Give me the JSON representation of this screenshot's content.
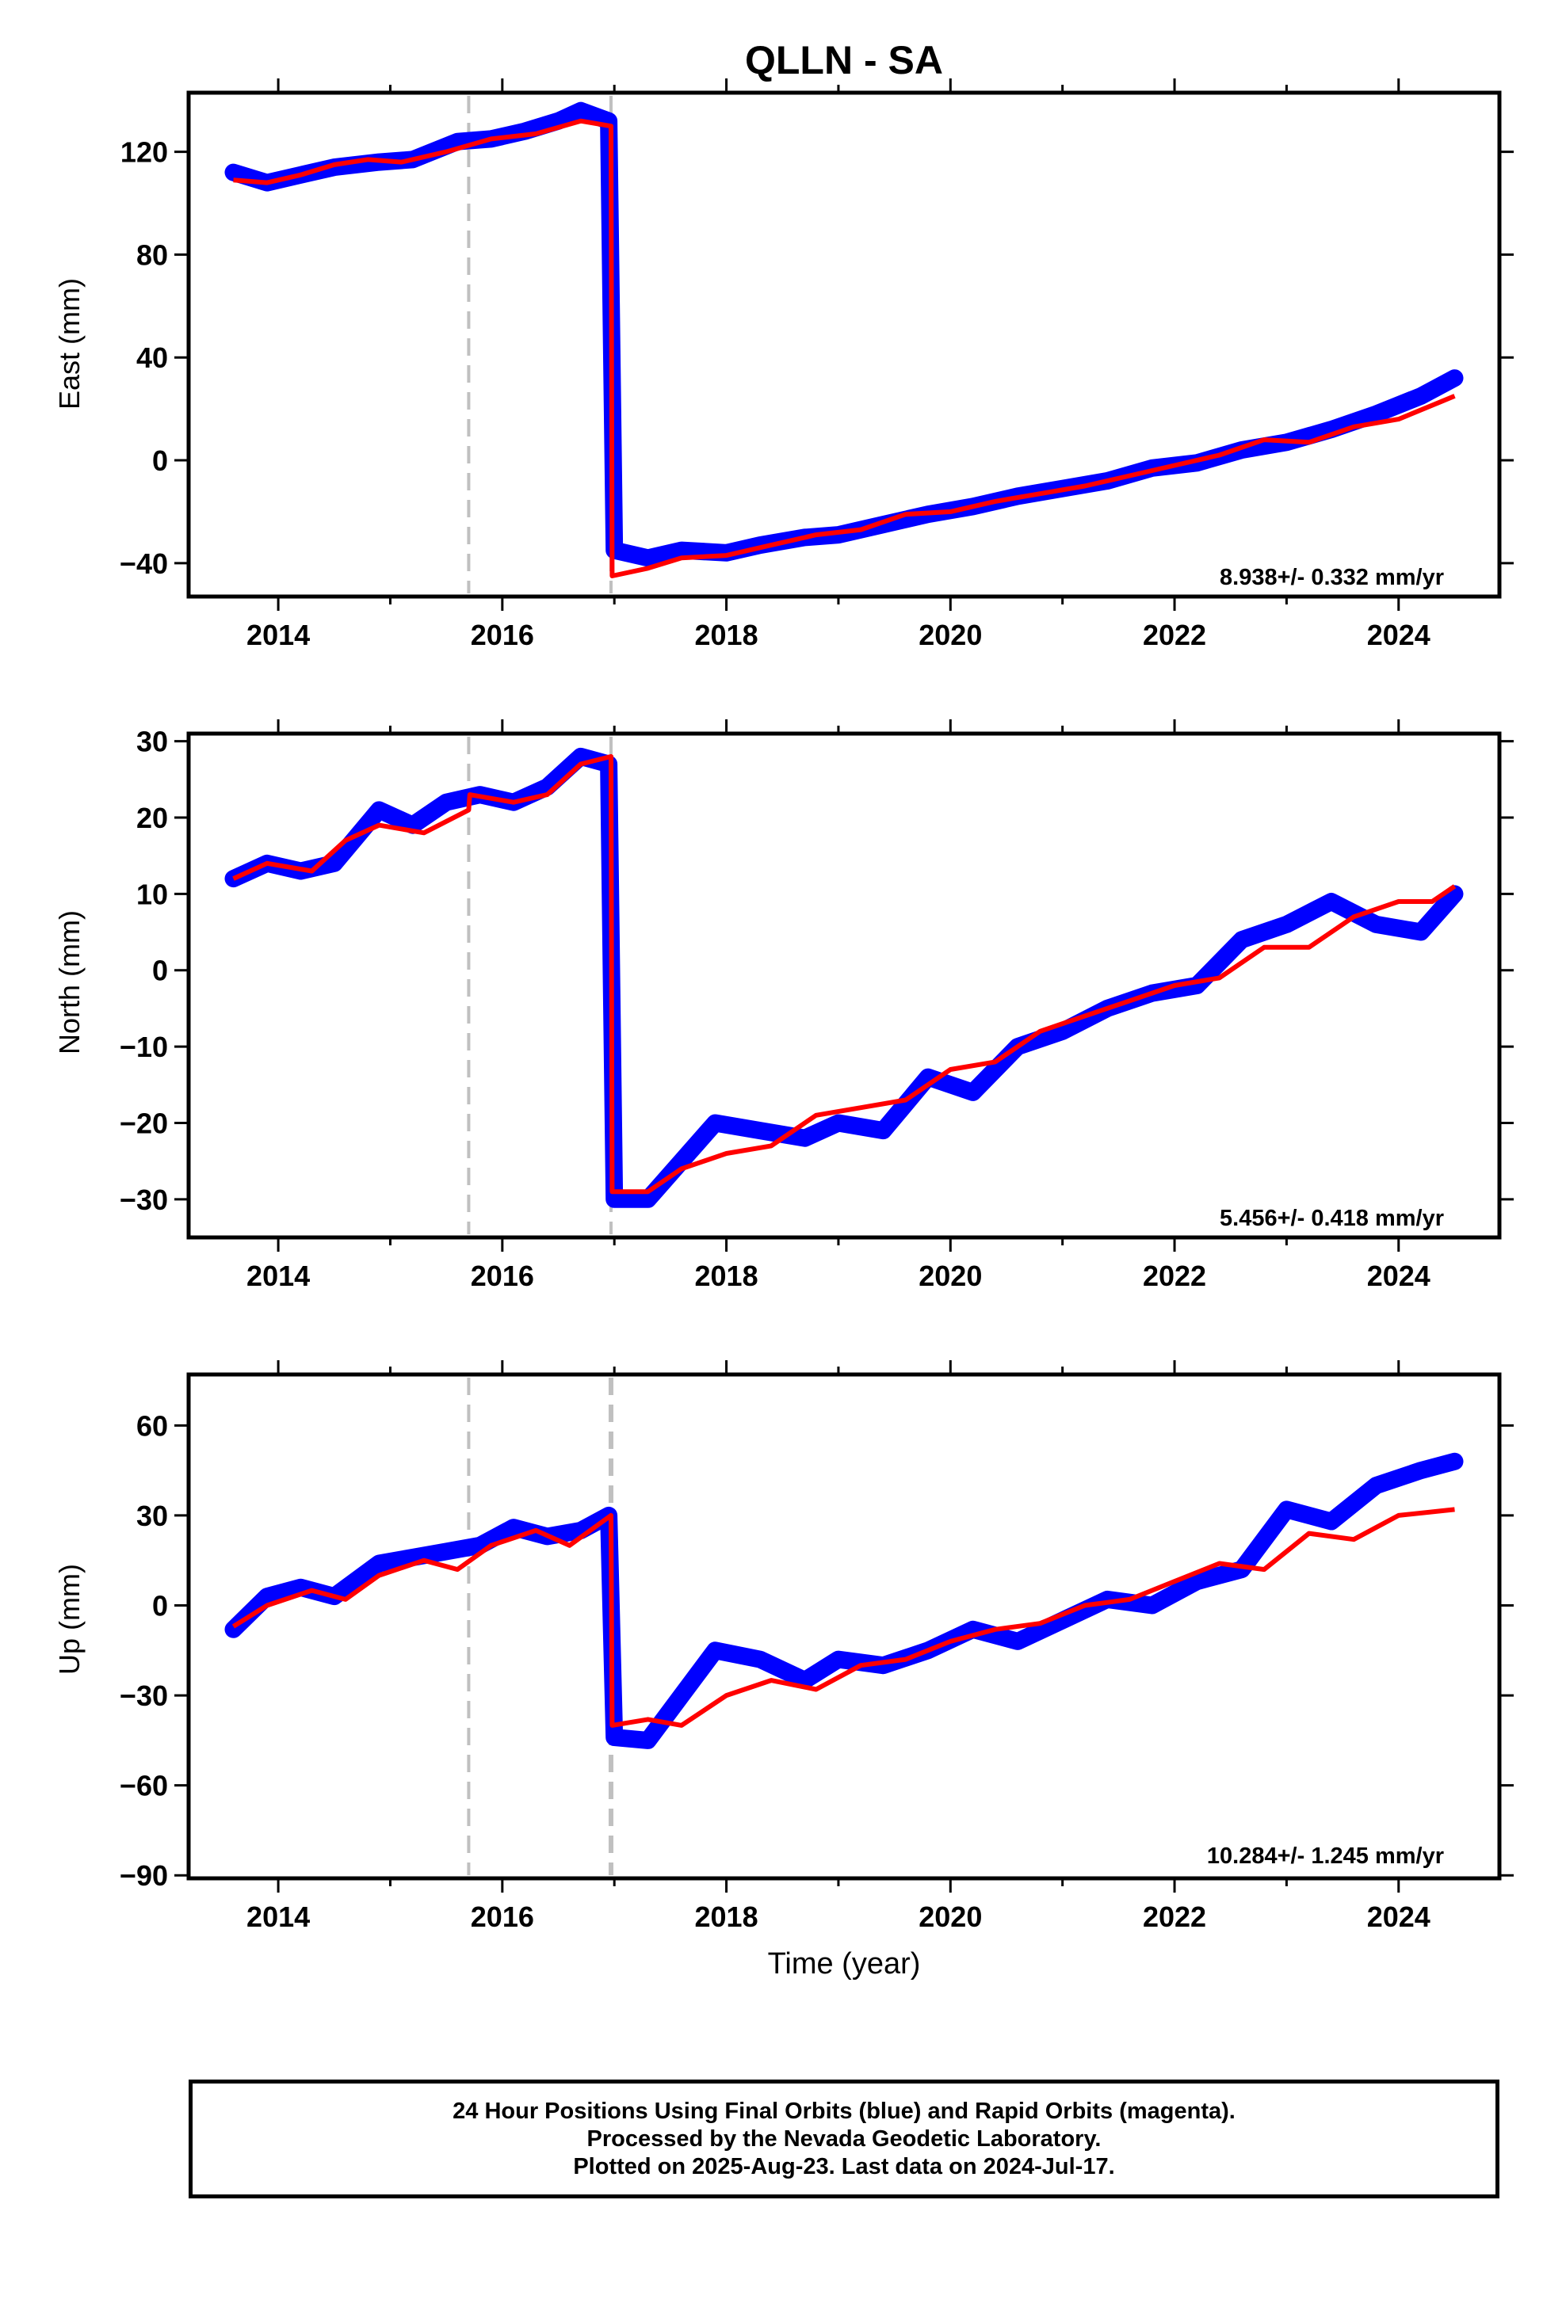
{
  "title": "QLLN - SA",
  "xlabel": "Time (year)",
  "colors": {
    "points": "#0000ff",
    "model": "#ff0000",
    "event_line": "#c0c0c0",
    "frame": "#000000"
  },
  "chart_data": [
    {
      "type": "scatter",
      "ylabel": "East (mm)",
      "xlim": [
        2013.2,
        2024.9
      ],
      "ylim": [
        -53,
        143
      ],
      "xticks": [
        2014,
        2016,
        2018,
        2020,
        2022,
        2024
      ],
      "xtick_labels": [
        "2014",
        "2016",
        "2018",
        "2020",
        "2022",
        "2024"
      ],
      "yticks": [
        -40,
        0,
        40,
        80,
        120
      ],
      "ytick_labels": [
        "−40",
        "0",
        "40",
        "80",
        "120"
      ],
      "rate_label": "8.938+/- 0.332 mm/yr",
      "event_lines": [
        2015.7,
        2016.97
      ],
      "series": [
        {
          "label": "positions",
          "points": [
            [
              2013.6,
              112
            ],
            [
              2013.9,
              108
            ],
            [
              2014.2,
              111
            ],
            [
              2014.5,
              114
            ],
            [
              2014.9,
              116
            ],
            [
              2015.2,
              117
            ],
            [
              2015.6,
              124
            ],
            [
              2015.9,
              125
            ],
            [
              2016.2,
              128
            ],
            [
              2016.5,
              132
            ],
            [
              2016.7,
              136
            ],
            [
              2016.95,
              132
            ],
            [
              2017.0,
              -35
            ],
            [
              2017.3,
              -38
            ],
            [
              2017.6,
              -35
            ],
            [
              2018.0,
              -36
            ],
            [
              2018.3,
              -33
            ],
            [
              2018.7,
              -30
            ],
            [
              2019.0,
              -29
            ],
            [
              2019.4,
              -25
            ],
            [
              2019.8,
              -21
            ],
            [
              2020.2,
              -18
            ],
            [
              2020.6,
              -14
            ],
            [
              2021.0,
              -11
            ],
            [
              2021.4,
              -8
            ],
            [
              2021.8,
              -3
            ],
            [
              2022.2,
              -1
            ],
            [
              2022.6,
              4
            ],
            [
              2023.0,
              7
            ],
            [
              2023.4,
              12
            ],
            [
              2023.8,
              18
            ],
            [
              2024.2,
              25
            ],
            [
              2024.5,
              32
            ]
          ]
        },
        {
          "label": "model",
          "points": [
            [
              2013.6,
              109
            ],
            [
              2013.9,
              108
            ],
            [
              2014.2,
              111
            ],
            [
              2014.5,
              115
            ],
            [
              2014.8,
              117
            ],
            [
              2015.1,
              116
            ],
            [
              2015.5,
              120
            ],
            [
              2015.9,
              125
            ],
            [
              2016.3,
              127
            ],
            [
              2016.7,
              132
            ],
            [
              2016.97,
              130
            ],
            [
              2016.98,
              -45
            ],
            [
              2017.3,
              -42
            ],
            [
              2017.6,
              -38
            ],
            [
              2018.0,
              -37
            ],
            [
              2018.4,
              -33
            ],
            [
              2018.8,
              -29
            ],
            [
              2019.2,
              -27
            ],
            [
              2019.6,
              -21
            ],
            [
              2020.0,
              -20
            ],
            [
              2020.4,
              -16
            ],
            [
              2020.8,
              -13
            ],
            [
              2021.2,
              -10
            ],
            [
              2021.6,
              -6
            ],
            [
              2022.0,
              -2
            ],
            [
              2022.4,
              2
            ],
            [
              2022.8,
              8
            ],
            [
              2023.2,
              7
            ],
            [
              2023.6,
              13
            ],
            [
              2024.0,
              16
            ],
            [
              2024.5,
              25
            ]
          ]
        }
      ]
    },
    {
      "type": "scatter",
      "ylabel": "North (mm)",
      "xlim": [
        2013.2,
        2024.9
      ],
      "ylim": [
        -35,
        31
      ],
      "xticks": [
        2014,
        2016,
        2018,
        2020,
        2022,
        2024
      ],
      "xtick_labels": [
        "2014",
        "2016",
        "2018",
        "2020",
        "2022",
        "2024"
      ],
      "yticks": [
        -30,
        -20,
        -10,
        0,
        10,
        20,
        30
      ],
      "ytick_labels": [
        "−30",
        "−20",
        "−10",
        "0",
        "10",
        "20",
        "30"
      ],
      "rate_label": "5.456+/- 0.418 mm/yr",
      "event_lines": [
        2015.7,
        2016.97
      ],
      "series": [
        {
          "label": "positions",
          "points": [
            [
              2013.6,
              12
            ],
            [
              2013.9,
              14
            ],
            [
              2014.2,
              13
            ],
            [
              2014.5,
              14
            ],
            [
              2014.9,
              21
            ],
            [
              2015.2,
              19
            ],
            [
              2015.5,
              22
            ],
            [
              2015.8,
              23
            ],
            [
              2016.1,
              22
            ],
            [
              2016.4,
              24
            ],
            [
              2016.7,
              28
            ],
            [
              2016.95,
              27
            ],
            [
              2017.0,
              -30
            ],
            [
              2017.3,
              -30
            ],
            [
              2017.6,
              -25
            ],
            [
              2017.9,
              -20
            ],
            [
              2018.3,
              -21
            ],
            [
              2018.7,
              -22
            ],
            [
              2019.0,
              -20
            ],
            [
              2019.4,
              -21
            ],
            [
              2019.8,
              -14
            ],
            [
              2020.2,
              -16
            ],
            [
              2020.6,
              -10
            ],
            [
              2021.0,
              -8
            ],
            [
              2021.4,
              -5
            ],
            [
              2021.8,
              -3
            ],
            [
              2022.2,
              -2
            ],
            [
              2022.6,
              4
            ],
            [
              2023.0,
              6
            ],
            [
              2023.4,
              9
            ],
            [
              2023.8,
              6
            ],
            [
              2024.2,
              5
            ],
            [
              2024.5,
              10
            ]
          ]
        },
        {
          "label": "model",
          "points": [
            [
              2013.6,
              12
            ],
            [
              2013.9,
              14
            ],
            [
              2014.3,
              13
            ],
            [
              2014.6,
              17
            ],
            [
              2014.9,
              19
            ],
            [
              2015.3,
              18
            ],
            [
              2015.7,
              21
            ],
            [
              2015.71,
              23
            ],
            [
              2016.1,
              22
            ],
            [
              2016.4,
              23
            ],
            [
              2016.7,
              27
            ],
            [
              2016.97,
              28
            ],
            [
              2016.98,
              -29
            ],
            [
              2017.3,
              -29
            ],
            [
              2017.6,
              -26
            ],
            [
              2018.0,
              -24
            ],
            [
              2018.4,
              -23
            ],
            [
              2018.8,
              -19
            ],
            [
              2019.2,
              -18
            ],
            [
              2019.6,
              -17
            ],
            [
              2020.0,
              -13
            ],
            [
              2020.4,
              -12
            ],
            [
              2020.8,
              -8
            ],
            [
              2021.2,
              -6
            ],
            [
              2021.6,
              -4
            ],
            [
              2022.0,
              -2
            ],
            [
              2022.4,
              -1
            ],
            [
              2022.8,
              3
            ],
            [
              2023.2,
              3
            ],
            [
              2023.6,
              7
            ],
            [
              2024.0,
              9
            ],
            [
              2024.3,
              9
            ],
            [
              2024.5,
              11
            ]
          ]
        }
      ]
    },
    {
      "type": "scatter",
      "ylabel": "Up (mm)",
      "xlim": [
        2013.2,
        2024.9
      ],
      "ylim": [
        -91,
        77
      ],
      "xticks": [
        2014,
        2016,
        2018,
        2020,
        2022,
        2024
      ],
      "xtick_labels": [
        "2014",
        "2016",
        "2018",
        "2020",
        "2022",
        "2024"
      ],
      "yticks": [
        -90,
        -60,
        -30,
        0,
        30,
        60
      ],
      "ytick_labels": [
        "−90",
        "−60",
        "−30",
        "0",
        "30",
        "60"
      ],
      "rate_label": "10.284+/- 1.245 mm/yr",
      "event_lines": [
        2015.7,
        2016.97
      ],
      "series": [
        {
          "label": "positions",
          "points": [
            [
              2013.6,
              -8
            ],
            [
              2013.9,
              3
            ],
            [
              2014.2,
              6
            ],
            [
              2014.5,
              3
            ],
            [
              2014.9,
              14
            ],
            [
              2015.2,
              16
            ],
            [
              2015.5,
              18
            ],
            [
              2015.8,
              20
            ],
            [
              2016.1,
              26
            ],
            [
              2016.4,
              23
            ],
            [
              2016.7,
              25
            ],
            [
              2016.95,
              30
            ],
            [
              2017.0,
              -44
            ],
            [
              2017.3,
              -45
            ],
            [
              2017.6,
              -30
            ],
            [
              2017.9,
              -15
            ],
            [
              2018.3,
              -18
            ],
            [
              2018.7,
              -25
            ],
            [
              2019.0,
              -18
            ],
            [
              2019.4,
              -20
            ],
            [
              2019.8,
              -15
            ],
            [
              2020.2,
              -8
            ],
            [
              2020.6,
              -12
            ],
            [
              2021.0,
              -5
            ],
            [
              2021.4,
              2
            ],
            [
              2021.8,
              0
            ],
            [
              2022.2,
              8
            ],
            [
              2022.6,
              12
            ],
            [
              2023.0,
              32
            ],
            [
              2023.4,
              28
            ],
            [
              2023.8,
              40
            ],
            [
              2024.2,
              45
            ],
            [
              2024.5,
              48
            ]
          ]
        },
        {
          "label": "model",
          "points": [
            [
              2013.6,
              -7
            ],
            [
              2013.9,
              0
            ],
            [
              2014.3,
              5
            ],
            [
              2014.6,
              2
            ],
            [
              2014.9,
              10
            ],
            [
              2015.3,
              15
            ],
            [
              2015.6,
              12
            ],
            [
              2015.9,
              20
            ],
            [
              2016.3,
              25
            ],
            [
              2016.6,
              20
            ],
            [
              2016.97,
              30
            ],
            [
              2016.98,
              -40
            ],
            [
              2017.3,
              -38
            ],
            [
              2017.6,
              -40
            ],
            [
              2018.0,
              -30
            ],
            [
              2018.4,
              -25
            ],
            [
              2018.8,
              -28
            ],
            [
              2019.2,
              -20
            ],
            [
              2019.6,
              -18
            ],
            [
              2020.0,
              -12
            ],
            [
              2020.4,
              -8
            ],
            [
              2020.8,
              -6
            ],
            [
              2021.2,
              0
            ],
            [
              2021.6,
              2
            ],
            [
              2022.0,
              8
            ],
            [
              2022.4,
              14
            ],
            [
              2022.8,
              12
            ],
            [
              2023.2,
              24
            ],
            [
              2023.6,
              22
            ],
            [
              2024.0,
              30
            ],
            [
              2024.5,
              32
            ]
          ]
        }
      ]
    }
  ],
  "footer": {
    "line1": "24 Hour Positions Using Final Orbits (blue) and Rapid Orbits (magenta).",
    "line2": "Processed by the Nevada Geodetic Laboratory.",
    "line3": "Plotted on 2025-Aug-23. Last data on 2024-Jul-17."
  }
}
